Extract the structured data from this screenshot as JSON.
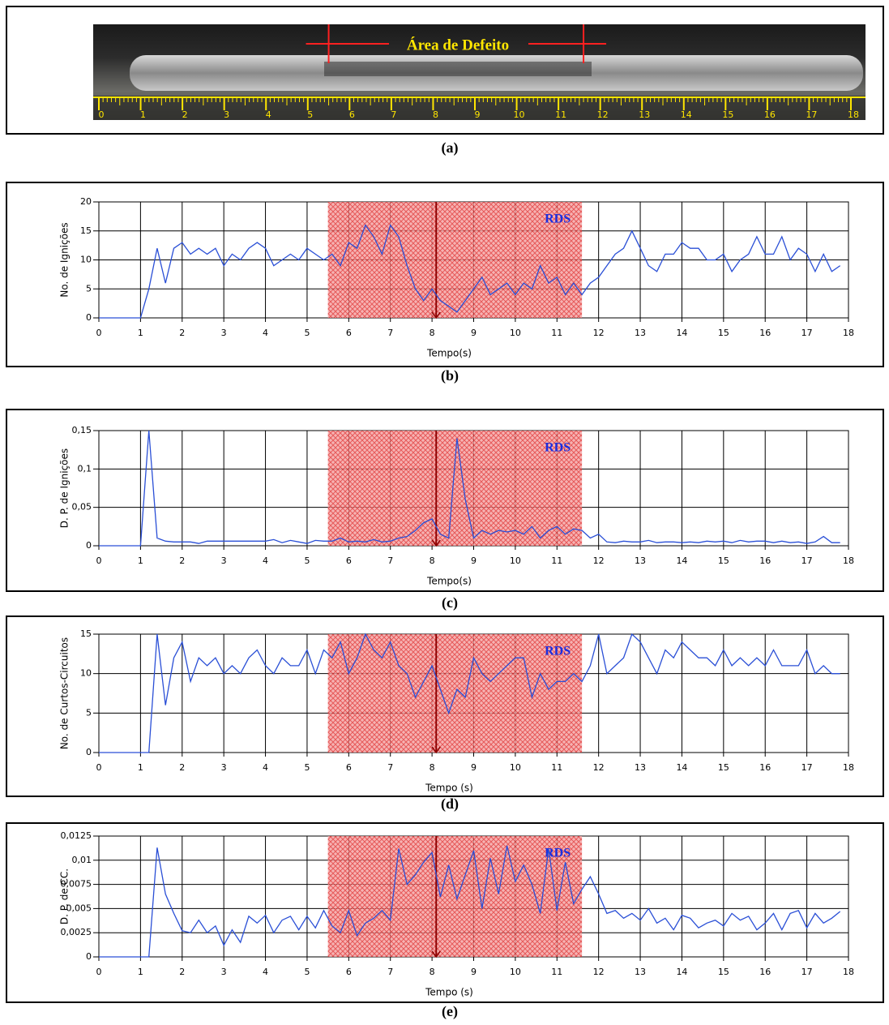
{
  "photo": {
    "label": "Área de Defeito",
    "ruler_ticks": [
      0,
      1,
      2,
      3,
      4,
      5,
      6,
      7,
      8,
      9,
      10,
      11,
      12,
      13,
      14,
      15,
      16,
      17,
      18
    ],
    "defect_range": [
      5.5,
      11.6
    ],
    "caption": "(a)"
  },
  "chart_data": [
    {
      "type": "line",
      "caption": "(b)",
      "x_label": "Tempo(s)",
      "y_label": "No. de Ignições",
      "color": "#2a4fd6",
      "x": [
        0,
        0.2,
        0.4,
        0.6,
        0.8,
        1,
        1.2,
        1.4,
        1.6,
        1.8,
        2,
        2.2,
        2.4,
        2.6,
        2.8,
        3,
        3.2,
        3.4,
        3.6,
        3.8,
        4,
        4.2,
        4.4,
        4.6,
        4.8,
        5,
        5.2,
        5.4,
        5.6,
        5.8,
        6,
        6.2,
        6.4,
        6.6,
        6.8,
        7,
        7.2,
        7.4,
        7.6,
        7.8,
        8,
        8.2,
        8.4,
        8.6,
        8.8,
        9,
        9.2,
        9.4,
        9.6,
        9.8,
        10,
        10.2,
        10.4,
        10.6,
        10.8,
        11,
        11.2,
        11.4,
        11.6,
        11.8,
        12,
        12.2,
        12.4,
        12.6,
        12.8,
        13,
        13.2,
        13.4,
        13.6,
        13.8,
        14,
        14.2,
        14.4,
        14.6,
        14.8,
        15,
        15.2,
        15.4,
        15.6,
        15.8,
        16,
        16.2,
        16.4,
        16.6,
        16.8,
        17,
        17.2,
        17.4,
        17.6,
        17.8
      ],
      "values": [
        0,
        0,
        0,
        0,
        0,
        0,
        5,
        12,
        6,
        12,
        13,
        11,
        12,
        11,
        12,
        9,
        11,
        10,
        12,
        13,
        12,
        9,
        10,
        11,
        10,
        12,
        11,
        10,
        11,
        9,
        13,
        12,
        16,
        14,
        11,
        16,
        14,
        9,
        5,
        3,
        5,
        3,
        2,
        1,
        3,
        5,
        7,
        4,
        5,
        6,
        4,
        6,
        5,
        9,
        6,
        7,
        4,
        6,
        4,
        6,
        7,
        9,
        11,
        12,
        15,
        12,
        9,
        8,
        11,
        11,
        13,
        12,
        12,
        10,
        10,
        11,
        8,
        10,
        11,
        14,
        11,
        11,
        14,
        10,
        12,
        11,
        8,
        11,
        8,
        9
      ],
      "xlim": [
        0,
        18
      ],
      "xticks": [
        0,
        1,
        2,
        3,
        4,
        5,
        6,
        7,
        8,
        9,
        10,
        11,
        12,
        13,
        14,
        15,
        16,
        17,
        18
      ],
      "ylim": [
        0,
        20
      ],
      "yticks": [
        0,
        5,
        10,
        15,
        20
      ],
      "grid": true,
      "highlight": {
        "label": "RDS",
        "xmin": 5.5,
        "xmax": 11.6
      },
      "cursor": 8.1
    },
    {
      "type": "line",
      "caption": "(c)",
      "x_label": "Tempo(s)",
      "y_label": "D. P. de Ignições",
      "color": "#2a4fd6",
      "x": [
        0,
        0.2,
        0.4,
        0.6,
        0.8,
        1,
        1.2,
        1.4,
        1.6,
        1.8,
        2,
        2.2,
        2.4,
        2.6,
        2.8,
        3,
        3.2,
        3.4,
        3.6,
        3.8,
        4,
        4.2,
        4.4,
        4.6,
        4.8,
        5,
        5.2,
        5.4,
        5.6,
        5.8,
        6,
        6.2,
        6.4,
        6.6,
        6.8,
        7,
        7.2,
        7.4,
        7.6,
        7.8,
        8,
        8.2,
        8.4,
        8.6,
        8.8,
        9,
        9.2,
        9.4,
        9.6,
        9.8,
        10,
        10.2,
        10.4,
        10.6,
        10.8,
        11,
        11.2,
        11.4,
        11.6,
        11.8,
        12,
        12.2,
        12.4,
        12.6,
        12.8,
        13,
        13.2,
        13.4,
        13.6,
        13.8,
        14,
        14.2,
        14.4,
        14.6,
        14.8,
        15,
        15.2,
        15.4,
        15.6,
        15.8,
        16,
        16.2,
        16.4,
        16.6,
        16.8,
        17,
        17.2,
        17.4,
        17.6,
        17.8
      ],
      "values": [
        0,
        0,
        0,
        0,
        0,
        0,
        0.15,
        0.01,
        0.006,
        0.005,
        0.005,
        0.005,
        0.003,
        0.006,
        0.006,
        0.006,
        0.006,
        0.006,
        0.006,
        0.006,
        0.006,
        0.008,
        0.004,
        0.007,
        0.005,
        0.003,
        0.007,
        0.006,
        0.006,
        0.01,
        0.005,
        0.006,
        0.005,
        0.008,
        0.005,
        0.006,
        0.01,
        0.012,
        0.02,
        0.03,
        0.035,
        0.015,
        0.01,
        0.14,
        0.06,
        0.01,
        0.02,
        0.015,
        0.02,
        0.018,
        0.02,
        0.015,
        0.025,
        0.01,
        0.02,
        0.025,
        0.015,
        0.022,
        0.02,
        0.01,
        0.015,
        0.005,
        0.004,
        0.006,
        0.005,
        0.005,
        0.007,
        0.004,
        0.005,
        0.005,
        0.004,
        0.005,
        0.004,
        0.006,
        0.005,
        0.006,
        0.004,
        0.007,
        0.005,
        0.006,
        0.006,
        0.004,
        0.006,
        0.004,
        0.005,
        0.003,
        0.005,
        0.012,
        0.004,
        0.004
      ],
      "xlim": [
        0,
        18
      ],
      "xticks": [
        0,
        1,
        2,
        3,
        4,
        5,
        6,
        7,
        8,
        9,
        10,
        11,
        12,
        13,
        14,
        15,
        16,
        17,
        18
      ],
      "ylim": [
        0,
        0.15
      ],
      "yticks": [
        0,
        {
          "value": 0.05,
          "label": "0,05"
        },
        {
          "value": 0.1,
          "label": "0,1"
        },
        {
          "value": 0.15,
          "label": "0,15"
        }
      ],
      "grid": true,
      "highlight": {
        "label": "RDS",
        "xmin": 5.5,
        "xmax": 11.6
      },
      "cursor": 8.1
    },
    {
      "type": "line",
      "caption": "(d)",
      "x_label": "Tempo (s)",
      "y_label": "No. de Curtos-Circuitos",
      "color": "#2a4fd6",
      "x": [
        0,
        0.2,
        0.4,
        0.6,
        0.8,
        1,
        1.2,
        1.4,
        1.6,
        1.8,
        2,
        2.2,
        2.4,
        2.6,
        2.8,
        3,
        3.2,
        3.4,
        3.6,
        3.8,
        4,
        4.2,
        4.4,
        4.6,
        4.8,
        5,
        5.2,
        5.4,
        5.6,
        5.8,
        6,
        6.2,
        6.4,
        6.6,
        6.8,
        7,
        7.2,
        7.4,
        7.6,
        7.8,
        8,
        8.2,
        8.4,
        8.6,
        8.8,
        9,
        9.2,
        9.4,
        9.6,
        9.8,
        10,
        10.2,
        10.4,
        10.6,
        10.8,
        11,
        11.2,
        11.4,
        11.6,
        11.8,
        12,
        12.2,
        12.4,
        12.6,
        12.8,
        13,
        13.2,
        13.4,
        13.6,
        13.8,
        14,
        14.2,
        14.4,
        14.6,
        14.8,
        15,
        15.2,
        15.4,
        15.6,
        15.8,
        16,
        16.2,
        16.4,
        16.6,
        16.8,
        17,
        17.2,
        17.4,
        17.6,
        17.8
      ],
      "values": [
        0,
        0,
        0,
        0,
        0,
        0,
        0,
        15,
        6,
        12,
        14,
        9,
        12,
        11,
        12,
        10,
        11,
        10,
        12,
        13,
        11,
        10,
        12,
        11,
        11,
        13,
        10,
        13,
        12,
        14,
        10,
        12,
        15,
        13,
        12,
        14,
        11,
        10,
        7,
        9,
        11,
        8,
        5,
        8,
        7,
        12,
        10,
        9,
        10,
        11,
        12,
        12,
        7,
        10,
        8,
        9,
        9,
        10,
        9,
        11,
        15,
        10,
        11,
        12,
        15,
        14,
        12,
        10,
        13,
        12,
        14,
        13,
        12,
        12,
        11,
        13,
        11,
        12,
        11,
        12,
        11,
        13,
        11,
        11,
        11,
        13,
        10,
        11,
        10,
        10
      ],
      "xlim": [
        0,
        18
      ],
      "xticks": [
        0,
        1,
        2,
        3,
        4,
        5,
        6,
        7,
        8,
        9,
        10,
        11,
        12,
        13,
        14,
        15,
        16,
        17,
        18
      ],
      "ylim": [
        0,
        15
      ],
      "yticks": [
        0,
        5,
        10,
        15
      ],
      "grid": true,
      "highlight": {
        "label": "RDS",
        "xmin": 5.5,
        "xmax": 11.6
      },
      "cursor": 8.1
    },
    {
      "type": "line",
      "caption": "(e)",
      "x_label": "Tempo (s)",
      "y_label": "D. P. de CC.",
      "color": "#2a4fd6",
      "x": [
        0,
        0.2,
        0.4,
        0.6,
        0.8,
        1,
        1.2,
        1.4,
        1.6,
        1.8,
        2,
        2.2,
        2.4,
        2.6,
        2.8,
        3,
        3.2,
        3.4,
        3.6,
        3.8,
        4,
        4.2,
        4.4,
        4.6,
        4.8,
        5,
        5.2,
        5.4,
        5.6,
        5.8,
        6,
        6.2,
        6.4,
        6.6,
        6.8,
        7,
        7.2,
        7.4,
        7.6,
        7.8,
        8,
        8.2,
        8.4,
        8.6,
        8.8,
        9,
        9.2,
        9.4,
        9.6,
        9.8,
        10,
        10.2,
        10.4,
        10.6,
        10.8,
        11,
        11.2,
        11.4,
        11.6,
        11.8,
        12,
        12.2,
        12.4,
        12.6,
        12.8,
        13,
        13.2,
        13.4,
        13.6,
        13.8,
        14,
        14.2,
        14.4,
        14.6,
        14.8,
        15,
        15.2,
        15.4,
        15.6,
        15.8,
        16,
        16.2,
        16.4,
        16.6,
        16.8,
        17,
        17.2,
        17.4,
        17.6,
        17.8
      ],
      "values": [
        0,
        0,
        0,
        0,
        0,
        0,
        0,
        0.0113,
        0.0065,
        0.0045,
        0.0027,
        0.0025,
        0.0038,
        0.0025,
        0.0032,
        0.0012,
        0.0028,
        0.0015,
        0.0042,
        0.0035,
        0.0043,
        0.0025,
        0.0038,
        0.0042,
        0.0028,
        0.0042,
        0.003,
        0.0048,
        0.0032,
        0.0025,
        0.0048,
        0.0022,
        0.0035,
        0.004,
        0.0048,
        0.0038,
        0.0112,
        0.0075,
        0.0085,
        0.0098,
        0.0108,
        0.0062,
        0.0095,
        0.006,
        0.0085,
        0.011,
        0.005,
        0.0102,
        0.0065,
        0.0115,
        0.0078,
        0.0095,
        0.0075,
        0.0045,
        0.0112,
        0.0048,
        0.0098,
        0.0055,
        0.007,
        0.0083,
        0.0065,
        0.0045,
        0.0048,
        0.004,
        0.0045,
        0.0038,
        0.005,
        0.0035,
        0.004,
        0.0028,
        0.0043,
        0.004,
        0.003,
        0.0035,
        0.0038,
        0.0032,
        0.0045,
        0.0038,
        0.0042,
        0.0028,
        0.0035,
        0.0045,
        0.0028,
        0.0045,
        0.0048,
        0.003,
        0.0045,
        0.0035,
        0.004,
        0.0047
      ],
      "xlim": [
        0,
        18
      ],
      "xticks": [
        0,
        1,
        2,
        3,
        4,
        5,
        6,
        7,
        8,
        9,
        10,
        11,
        12,
        13,
        14,
        15,
        16,
        17,
        18
      ],
      "ylim": [
        0,
        0.0125
      ],
      "yticks": [
        0,
        {
          "value": 0.0025,
          "label": "0,0025"
        },
        {
          "value": 0.005,
          "label": "0,005"
        },
        {
          "value": 0.0075,
          "label": "0,0075"
        },
        {
          "value": 0.01,
          "label": "0,01"
        },
        {
          "value": 0.0125,
          "label": "0,0125"
        }
      ],
      "grid": true,
      "highlight": {
        "label": "RDS",
        "xmin": 5.5,
        "xmax": 11.6
      },
      "cursor": 8.1
    }
  ]
}
